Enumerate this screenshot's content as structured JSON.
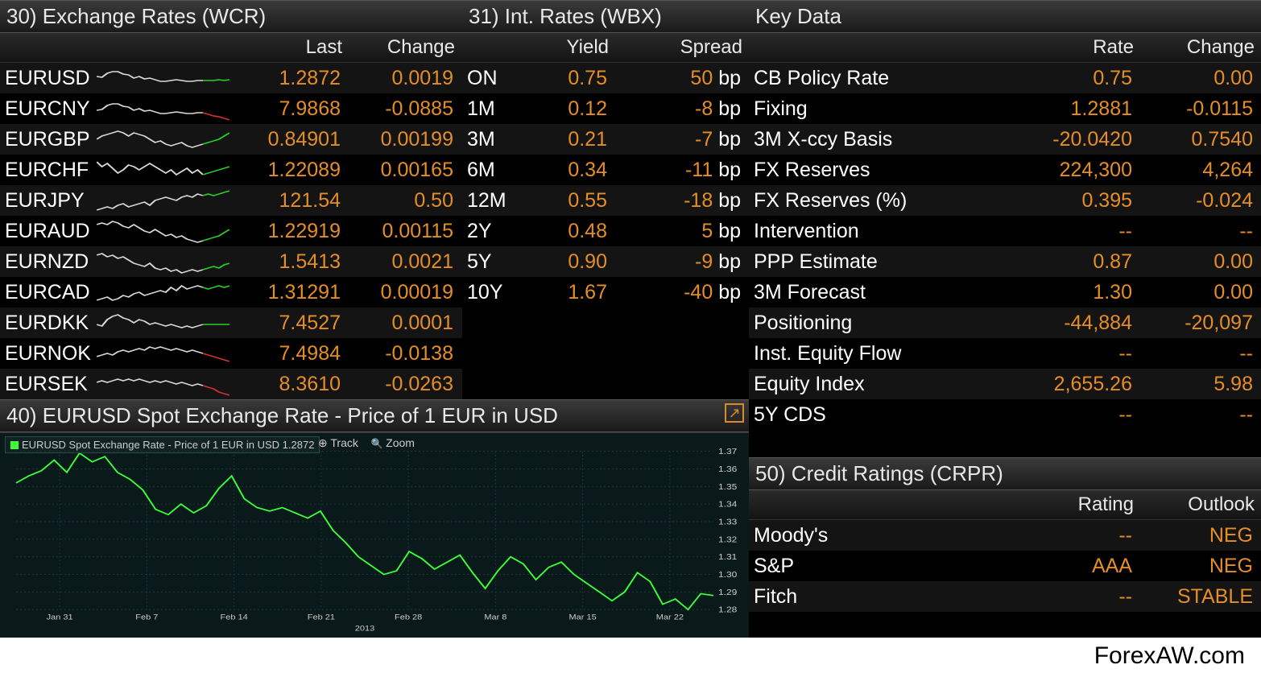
{
  "colors": {
    "bg": "#000000",
    "text": "#ffffff",
    "num": "#e58e26",
    "header_grad_top": "#3a3a3a",
    "header_grad_bot": "#1a1a1a",
    "row_alt": "#141414",
    "chart_bg": "#0a1a1a",
    "grid": "#1e3a3a",
    "line_up": "#28d028",
    "line_down": "#d83030",
    "spark_white": "#d8d8d8"
  },
  "panels": {
    "wcr": {
      "title": "30) Exchange Rates (WCR)",
      "col_last": "Last",
      "col_change": "Change",
      "rows": [
        {
          "pair": "EURUSD",
          "last": "1.2872",
          "change": "0.0019",
          "up": true,
          "spark_white": [
            0,
            16,
            4,
            17,
            8,
            12,
            12,
            10,
            16,
            10,
            20,
            13,
            24,
            14,
            28,
            18,
            32,
            16,
            36,
            19,
            40,
            18,
            44,
            20,
            48,
            22,
            52,
            22,
            56,
            21,
            60,
            20,
            64,
            21,
            68,
            22,
            72,
            22,
            76,
            21,
            80,
            21
          ],
          "spark_color": [
            80,
            21,
            84,
            21,
            88,
            21,
            92,
            20,
            96,
            21,
            100,
            20
          ]
        },
        {
          "pair": "EURCNY",
          "last": "7.9868",
          "change": "-0.0885",
          "up": false,
          "spark_white": [
            0,
            20,
            4,
            19,
            8,
            14,
            12,
            12,
            16,
            12,
            20,
            15,
            24,
            16,
            28,
            20,
            32,
            18,
            36,
            21,
            40,
            20,
            44,
            22,
            48,
            24,
            52,
            24,
            56,
            23,
            60,
            22,
            64,
            23,
            68,
            24,
            72,
            24,
            76,
            23,
            80,
            23
          ],
          "spark_color": [
            80,
            23,
            84,
            25,
            88,
            27,
            92,
            28,
            96,
            30,
            100,
            32
          ]
        },
        {
          "pair": "EURGBP",
          "last": "0.84901",
          "change": "0.00199",
          "up": true,
          "spark_white": [
            0,
            18,
            4,
            14,
            8,
            12,
            12,
            10,
            16,
            8,
            20,
            10,
            24,
            14,
            28,
            10,
            32,
            12,
            36,
            14,
            40,
            18,
            44,
            22,
            48,
            20,
            52,
            24,
            56,
            26,
            60,
            24,
            64,
            22,
            68,
            26,
            72,
            28,
            76,
            26,
            80,
            24
          ],
          "spark_color": [
            80,
            24,
            84,
            22,
            88,
            20,
            92,
            18,
            96,
            14,
            100,
            10
          ]
        },
        {
          "pair": "EURCHF",
          "last": "1.22089",
          "change": "0.00165",
          "up": true,
          "spark_white": [
            0,
            8,
            4,
            14,
            8,
            10,
            12,
            16,
            16,
            22,
            20,
            18,
            24,
            12,
            28,
            14,
            32,
            18,
            36,
            14,
            40,
            10,
            44,
            14,
            48,
            18,
            52,
            22,
            56,
            18,
            60,
            24,
            64,
            20,
            68,
            16,
            72,
            22,
            76,
            18,
            80,
            24
          ],
          "spark_color": [
            80,
            24,
            84,
            22,
            88,
            20,
            92,
            18,
            96,
            16,
            100,
            14
          ]
        },
        {
          "pair": "EURJPY",
          "last": "121.54",
          "change": "0.50",
          "up": true,
          "spark_white": [
            0,
            30,
            4,
            28,
            8,
            26,
            12,
            28,
            16,
            24,
            20,
            22,
            24,
            26,
            28,
            24,
            32,
            22,
            36,
            20,
            40,
            24,
            44,
            18,
            48,
            16,
            52,
            14,
            56,
            16,
            60,
            18,
            64,
            14,
            68,
            12,
            72,
            14,
            76,
            10,
            80,
            12
          ],
          "spark_color": [
            80,
            12,
            84,
            10,
            88,
            12,
            92,
            10,
            96,
            8,
            100,
            6
          ]
        },
        {
          "pair": "EURAUD",
          "last": "1.22919",
          "change": "0.00115",
          "up": true,
          "spark_white": [
            0,
            10,
            4,
            8,
            8,
            10,
            12,
            6,
            16,
            8,
            20,
            12,
            24,
            14,
            28,
            10,
            32,
            14,
            36,
            18,
            40,
            20,
            44,
            16,
            48,
            20,
            52,
            24,
            56,
            22,
            60,
            26,
            64,
            24,
            68,
            28,
            72,
            30,
            76,
            32,
            80,
            30
          ],
          "spark_color": [
            80,
            30,
            84,
            28,
            88,
            26,
            92,
            24,
            96,
            20,
            100,
            16
          ]
        },
        {
          "pair": "EURNZD",
          "last": "1.5413",
          "change": "0.0021",
          "up": true,
          "spark_white": [
            0,
            10,
            4,
            8,
            8,
            12,
            12,
            10,
            16,
            14,
            20,
            12,
            24,
            16,
            28,
            20,
            32,
            22,
            36,
            24,
            40,
            20,
            44,
            26,
            48,
            28,
            52,
            26,
            56,
            30,
            60,
            28,
            64,
            32,
            68,
            30,
            72,
            28,
            76,
            30,
            80,
            28
          ],
          "spark_color": [
            80,
            28,
            84,
            26,
            88,
            24,
            92,
            26,
            96,
            22,
            100,
            20
          ]
        },
        {
          "pair": "EURCAD",
          "last": "1.31291",
          "change": "0.00019",
          "up": true,
          "spark_white": [
            0,
            28,
            4,
            26,
            8,
            24,
            12,
            28,
            16,
            26,
            20,
            22,
            24,
            24,
            28,
            20,
            32,
            18,
            36,
            22,
            40,
            20,
            44,
            18,
            48,
            16,
            52,
            18,
            56,
            12,
            60,
            16,
            64,
            10,
            68,
            14,
            72,
            12,
            76,
            10,
            80,
            12
          ],
          "spark_color": [
            80,
            12,
            84,
            14,
            88,
            12,
            92,
            10,
            96,
            12,
            100,
            10
          ]
        },
        {
          "pair": "EURDKK",
          "last": "7.4527",
          "change": "0.0001",
          "up": true,
          "spark_white": [
            0,
            20,
            4,
            22,
            8,
            14,
            12,
            10,
            16,
            8,
            20,
            12,
            24,
            14,
            28,
            18,
            32,
            14,
            36,
            16,
            40,
            20,
            44,
            18,
            48,
            20,
            52,
            22,
            56,
            20,
            60,
            22,
            64,
            24,
            68,
            22,
            72,
            24,
            76,
            22,
            80,
            20
          ],
          "spark_color": [
            80,
            20,
            84,
            20,
            88,
            20,
            92,
            20,
            96,
            20,
            100,
            20
          ]
        },
        {
          "pair": "EURNOK",
          "last": "7.4984",
          "change": "-0.0138",
          "up": false,
          "spark_white": [
            0,
            22,
            4,
            20,
            8,
            18,
            12,
            20,
            16,
            16,
            20,
            14,
            24,
            16,
            28,
            14,
            32,
            12,
            36,
            14,
            40,
            10,
            44,
            12,
            48,
            10,
            52,
            12,
            56,
            14,
            60,
            12,
            64,
            14,
            68,
            16,
            72,
            14,
            76,
            16,
            80,
            18
          ],
          "spark_color": [
            80,
            18,
            84,
            20,
            88,
            22,
            92,
            24,
            96,
            26,
            100,
            28
          ]
        },
        {
          "pair": "EURSEK",
          "last": "8.3610",
          "change": "-0.0263",
          "up": false,
          "spark_white": [
            0,
            16,
            4,
            14,
            8,
            16,
            12,
            14,
            16,
            12,
            20,
            14,
            24,
            12,
            28,
            14,
            32,
            12,
            36,
            14,
            40,
            16,
            44,
            14,
            48,
            16,
            52,
            14,
            56,
            16,
            60,
            18,
            64,
            16,
            68,
            18,
            72,
            20,
            76,
            18,
            80,
            20
          ],
          "spark_color": [
            80,
            20,
            84,
            22,
            88,
            24,
            92,
            28,
            96,
            30,
            100,
            32
          ]
        }
      ]
    },
    "wbx": {
      "title": "31) Int. Rates (WBX)",
      "col_yield": "Yield",
      "col_spread": "Spread",
      "rows": [
        {
          "tenor": "ON",
          "yield": "0.75",
          "spread": "50",
          "unit": "bp"
        },
        {
          "tenor": "1M",
          "yield": "0.12",
          "spread": "-8",
          "unit": "bp"
        },
        {
          "tenor": "3M",
          "yield": "0.21",
          "spread": "-7",
          "unit": "bp"
        },
        {
          "tenor": "6M",
          "yield": "0.34",
          "spread": "-11",
          "unit": "bp"
        },
        {
          "tenor": "12M",
          "yield": "0.55",
          "spread": "-18",
          "unit": "bp"
        },
        {
          "tenor": "2Y",
          "yield": "0.48",
          "spread": "5",
          "unit": "bp"
        },
        {
          "tenor": "5Y",
          "yield": "0.90",
          "spread": "-9",
          "unit": "bp"
        },
        {
          "tenor": "10Y",
          "yield": "1.67",
          "spread": "-40",
          "unit": "bp"
        }
      ]
    },
    "key": {
      "title": "Key Data",
      "col_rate": "Rate",
      "col_change": "Change",
      "rows": [
        {
          "label": "CB Policy Rate",
          "rate": "0.75",
          "change": "0.00"
        },
        {
          "label": "Fixing",
          "rate": "1.2881",
          "change": "-0.0115"
        },
        {
          "label": "3M X-ccy Basis",
          "rate": "-20.0420",
          "change": "0.7540"
        },
        {
          "label": "FX Reserves",
          "rate": "224,300",
          "change": "4,264"
        },
        {
          "label": "FX Reserves (%)",
          "rate": "0.395",
          "change": "-0.024"
        },
        {
          "label": "Intervention",
          "rate": "--",
          "change": "--"
        },
        {
          "label": "PPP Estimate",
          "rate": "0.87",
          "change": "0.00"
        },
        {
          "label": "3M Forecast",
          "rate": "1.30",
          "change": "0.00"
        },
        {
          "label": "Positioning",
          "rate": "-44,884",
          "change": "-20,097"
        },
        {
          "label": "Inst. Equity Flow",
          "rate": "--",
          "change": "--"
        },
        {
          "label": "Equity Index",
          "rate": "2,655.26",
          "change": "5.98"
        },
        {
          "label": "5Y CDS",
          "rate": "--",
          "change": "--"
        }
      ]
    },
    "chart": {
      "title": "40) EURUSD Spot Exchange Rate - Price of 1 EUR in USD",
      "legend": "EURUSD Spot Exchange Rate - Price of 1 EUR in USD  1.2872",
      "tool_track": "Track",
      "tool_zoom": "Zoom",
      "y_ticks": [
        "1.37",
        "1.36",
        "1.35",
        "1.34",
        "1.33",
        "1.32",
        "1.31",
        "1.30",
        "1.29",
        "1.28"
      ],
      "y_min": 1.28,
      "y_max": 1.37,
      "x_labels": [
        "Jan 31",
        "Feb 7",
        "Feb 14",
        "Feb 21",
        "Feb 28",
        "Mar 8",
        "Mar 15",
        "Mar 22"
      ],
      "x_year": "2013",
      "line_color": "#3aff3a",
      "line_width": 2,
      "series": [
        1.352,
        1.356,
        1.359,
        1.365,
        1.358,
        1.369,
        1.364,
        1.367,
        1.358,
        1.354,
        1.348,
        1.337,
        1.334,
        1.34,
        1.335,
        1.339,
        1.349,
        1.356,
        1.343,
        1.338,
        1.336,
        1.338,
        1.335,
        1.332,
        1.336,
        1.325,
        1.318,
        1.31,
        1.305,
        1.3,
        1.302,
        1.313,
        1.309,
        1.303,
        1.307,
        1.311,
        1.301,
        1.292,
        1.302,
        1.31,
        1.306,
        1.297,
        1.304,
        1.307,
        1.3,
        1.295,
        1.29,
        1.285,
        1.29,
        1.301,
        1.296,
        1.283,
        1.286,
        1.28,
        1.289,
        1.288
      ]
    },
    "crpr": {
      "title": "50) Credit Ratings (CRPR)",
      "col_rating": "Rating",
      "col_outlook": "Outlook",
      "rows": [
        {
          "agency": "Moody's",
          "rating": "--",
          "outlook": "NEG"
        },
        {
          "agency": "S&P",
          "rating": "AAA",
          "outlook": "NEG"
        },
        {
          "agency": "Fitch",
          "rating": "--",
          "outlook": "STABLE"
        }
      ]
    }
  },
  "watermark": "ForexAW.com"
}
